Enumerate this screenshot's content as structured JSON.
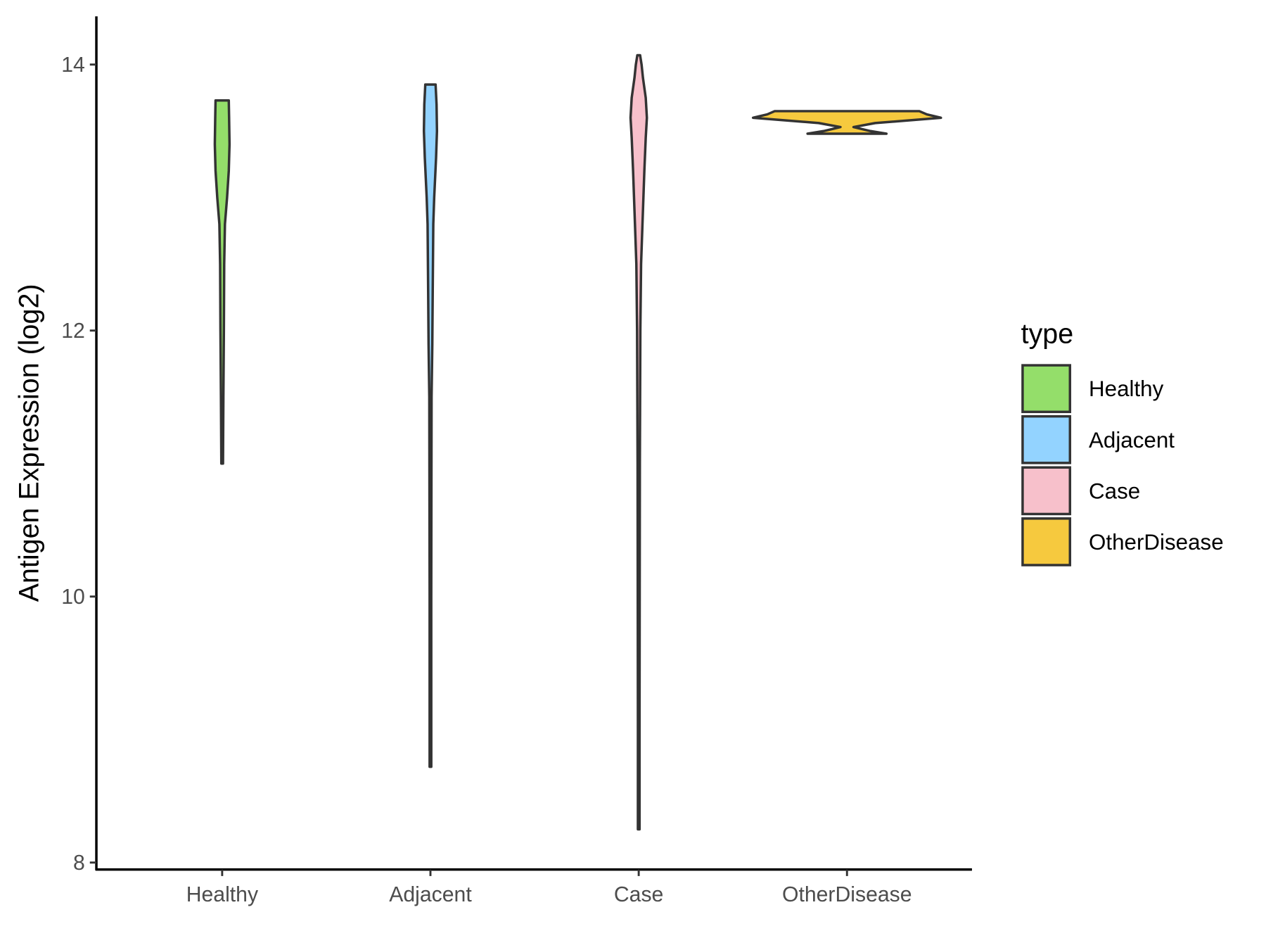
{
  "chart_data": {
    "type": "violin",
    "title": "",
    "xlabel": "",
    "ylabel": "Antigen Expression (log2)",
    "ylim": [
      7.95,
      14.35
    ],
    "yticks": [
      8,
      10,
      12,
      14
    ],
    "categories": [
      "Healthy",
      "Adjacent",
      "Case",
      "OtherDisease"
    ],
    "colors": [
      "#94DE6A",
      "#93D3FF",
      "#F7C0CB",
      "#F6C93E"
    ],
    "legend": {
      "title": "type",
      "position": "right",
      "entries": [
        "Healthy",
        "Adjacent",
        "Case",
        "OtherDisease"
      ]
    },
    "violins": [
      {
        "name": "Healthy",
        "min": 11.0,
        "max": 13.73,
        "profile": [
          [
            11.0,
            0.009
          ],
          [
            11.5,
            0.013
          ],
          [
            12.0,
            0.018
          ],
          [
            12.5,
            0.022
          ],
          [
            12.8,
            0.03
          ],
          [
            13.0,
            0.052
          ],
          [
            13.2,
            0.07
          ],
          [
            13.4,
            0.078
          ],
          [
            13.6,
            0.074
          ],
          [
            13.73,
            0.07
          ]
        ]
      },
      {
        "name": "Adjacent",
        "min": 8.72,
        "max": 13.85,
        "profile": [
          [
            8.72,
            0.009
          ],
          [
            10.0,
            0.009
          ],
          [
            11.5,
            0.012
          ],
          [
            11.9,
            0.02
          ],
          [
            12.3,
            0.024
          ],
          [
            12.8,
            0.03
          ],
          [
            13.0,
            0.04
          ],
          [
            13.3,
            0.06
          ],
          [
            13.5,
            0.07
          ],
          [
            13.7,
            0.065
          ],
          [
            13.85,
            0.055
          ]
        ]
      },
      {
        "name": "Case",
        "min": 8.25,
        "max": 14.07,
        "profile": [
          [
            8.25,
            0.009
          ],
          [
            9.0,
            0.009
          ],
          [
            11.0,
            0.012
          ],
          [
            12.0,
            0.017
          ],
          [
            12.5,
            0.025
          ],
          [
            12.8,
            0.04
          ],
          [
            13.2,
            0.06
          ],
          [
            13.45,
            0.075
          ],
          [
            13.6,
            0.087
          ],
          [
            13.75,
            0.075
          ],
          [
            13.9,
            0.045
          ],
          [
            14.0,
            0.03
          ],
          [
            14.07,
            0.015
          ]
        ]
      },
      {
        "name": "OtherDisease",
        "min": 13.48,
        "max": 13.65,
        "profile": [
          [
            13.48,
            0.42
          ],
          [
            13.5,
            0.25
          ],
          [
            13.53,
            0.07
          ],
          [
            13.56,
            0.3
          ],
          [
            13.6,
            1.0
          ],
          [
            13.625,
            0.85
          ],
          [
            13.65,
            0.77
          ]
        ]
      }
    ]
  }
}
